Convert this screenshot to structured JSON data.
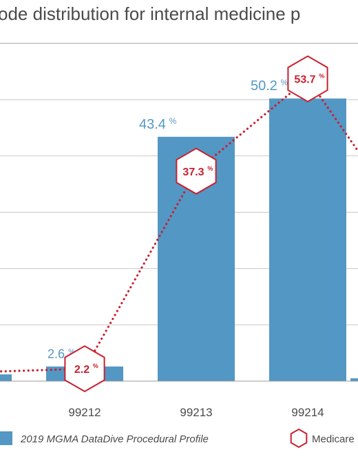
{
  "chart_data": {
    "type": "bar",
    "title": "ode distribution for internal medicine p",
    "categories": [
      "",
      "99212",
      "99213",
      "99214",
      ""
    ],
    "ylim": [
      0,
      60
    ],
    "grid": true,
    "series": [
      {
        "name": "2019 MGMA DataDive Procedural Profile",
        "kind": "bar",
        "color": "#5397c4",
        "values": [
          null,
          2.6,
          43.4,
          50.2,
          null
        ],
        "labels": [
          "",
          "2.6",
          "43.4",
          "50.2",
          ""
        ]
      },
      {
        "name": "Medicare",
        "kind": "line",
        "color": "#c8202f",
        "values": [
          null,
          2.2,
          37.3,
          53.7,
          null
        ],
        "labels": [
          "",
          "2.2",
          "37.3",
          "53.7",
          ""
        ]
      }
    ],
    "percent_sign": "%",
    "legend_position": "bottom"
  }
}
